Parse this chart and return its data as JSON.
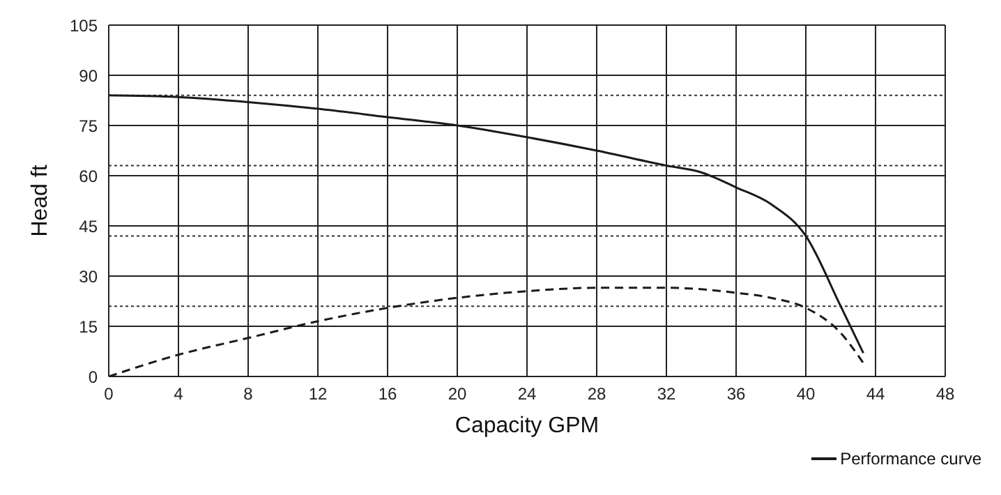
{
  "chart_data": {
    "type": "line",
    "xlabel": "Capacity GPM",
    "ylabel": "Head ft",
    "xlim": [
      0,
      48
    ],
    "xticks": [
      0,
      4,
      8,
      12,
      16,
      20,
      24,
      28,
      32,
      36,
      40,
      44,
      48
    ],
    "ylim": [
      0,
      105
    ],
    "yticks": [
      0,
      15,
      30,
      45,
      60,
      75,
      90,
      105
    ],
    "grid": true,
    "legend": "bottom right",
    "marker": "none",
    "ref_lines": [
      {
        "axis": "y",
        "value": 84,
        "line_style": "dotted"
      },
      {
        "axis": "y",
        "value": 63,
        "line_style": "dotted"
      },
      {
        "axis": "y",
        "value": 42,
        "line_style": "dotted"
      },
      {
        "axis": "y",
        "value": 21,
        "line_style": "dotted"
      }
    ],
    "series": [
      {
        "name": "Performance curve",
        "color": "#1a1a1a",
        "line_style": "solid",
        "x": [
          0,
          4,
          8,
          12,
          16,
          20,
          24,
          28,
          32,
          34,
          36,
          38,
          40,
          42,
          43.3
        ],
        "values": [
          84,
          83.5,
          82,
          80,
          77.5,
          75,
          71.5,
          67.5,
          63,
          61,
          56.5,
          51.5,
          42,
          21,
          7
        ]
      },
      {
        "color": "#1a1a1a",
        "line_style": "dashed",
        "x": [
          0,
          4,
          8,
          12,
          16,
          20,
          24,
          28,
          32,
          36,
          38,
          40,
          42,
          43.3
        ],
        "values": [
          0,
          6.5,
          11.5,
          16.5,
          20.5,
          23.5,
          25.5,
          26.5,
          26.5,
          25,
          23.5,
          20.5,
          13,
          4
        ]
      }
    ]
  }
}
